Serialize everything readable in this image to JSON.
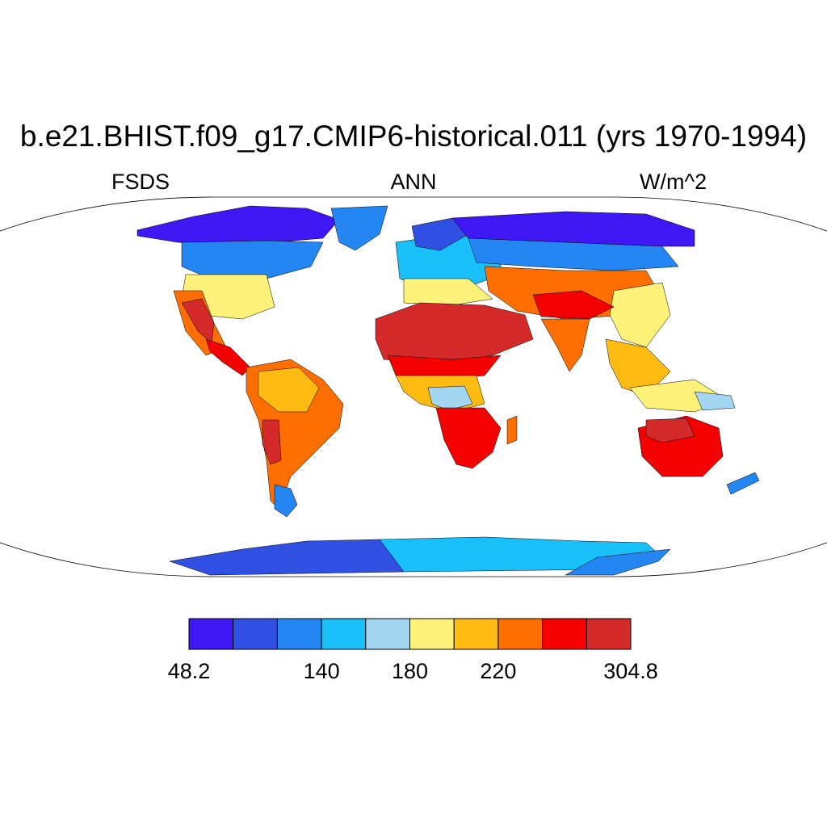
{
  "title": "b.e21.BHIST.f09_g17.CMIP6-historical.011 (yrs 1970-1994)",
  "left_label": "FSDS",
  "center_label": "ANN",
  "right_label": "W/m^2",
  "colorbar": {
    "colors": [
      "#3f17f3",
      "#2f50e3",
      "#2386f2",
      "#18bff8",
      "#a3d6f0",
      "#fff27a",
      "#ffbb11",
      "#ff6e00",
      "#f40000",
      "#d52a2a"
    ],
    "labels": [
      "48.2",
      "140",
      "180",
      "220",
      "304.8"
    ]
  },
  "map_regions": [
    {
      "name": "canada-arctic",
      "color": "#3f17f3",
      "pts": [
        [
          170,
          285
        ],
        [
          240,
          268
        ],
        [
          310,
          255
        ],
        [
          380,
          258
        ],
        [
          420,
          272
        ],
        [
          400,
          295
        ],
        [
          340,
          300
        ],
        [
          280,
          305
        ],
        [
          220,
          300
        ],
        [
          170,
          292
        ]
      ]
    },
    {
      "name": "north-america-mid",
      "color": "#2386f2",
      "pts": [
        [
          225,
          300
        ],
        [
          330,
          298
        ],
        [
          400,
          300
        ],
        [
          385,
          330
        ],
        [
          330,
          345
        ],
        [
          260,
          345
        ],
        [
          225,
          330
        ]
      ]
    },
    {
      "name": "greenland",
      "color": "#2386f2",
      "pts": [
        [
          410,
          258
        ],
        [
          480,
          255
        ],
        [
          470,
          290
        ],
        [
          440,
          310
        ],
        [
          420,
          300
        ]
      ]
    },
    {
      "name": "usa-east",
      "color": "#fff27a",
      "pts": [
        [
          230,
          340
        ],
        [
          330,
          340
        ],
        [
          340,
          380
        ],
        [
          300,
          395
        ],
        [
          250,
          390
        ],
        [
          225,
          370
        ]
      ]
    },
    {
      "name": "usa-southwest",
      "color": "#ff6e00",
      "pts": [
        [
          215,
          360
        ],
        [
          250,
          360
        ],
        [
          265,
          400
        ],
        [
          280,
          430
        ],
        [
          255,
          440
        ],
        [
          230,
          410
        ]
      ]
    },
    {
      "name": "mexico",
      "color": "#d52a2a",
      "pts": [
        [
          225,
          375
        ],
        [
          250,
          370
        ],
        [
          265,
          400
        ],
        [
          262,
          425
        ],
        [
          245,
          410
        ]
      ]
    },
    {
      "name": "central-america",
      "color": "#f40000",
      "pts": [
        [
          255,
          420
        ],
        [
          285,
          430
        ],
        [
          310,
          455
        ],
        [
          300,
          465
        ],
        [
          275,
          448
        ],
        [
          260,
          435
        ]
      ]
    },
    {
      "name": "south-america",
      "color": "#ff6e00",
      "pts": [
        [
          305,
          455
        ],
        [
          360,
          445
        ],
        [
          400,
          470
        ],
        [
          425,
          500
        ],
        [
          420,
          530
        ],
        [
          390,
          560
        ],
        [
          360,
          590
        ],
        [
          345,
          630
        ],
        [
          335,
          620
        ],
        [
          330,
          570
        ],
        [
          320,
          520
        ],
        [
          305,
          485
        ]
      ]
    },
    {
      "name": "amazon",
      "color": "#ffbb11",
      "pts": [
        [
          320,
          460
        ],
        [
          370,
          455
        ],
        [
          395,
          480
        ],
        [
          380,
          510
        ],
        [
          345,
          510
        ],
        [
          320,
          490
        ]
      ]
    },
    {
      "name": "patagonia",
      "color": "#2386f2",
      "pts": [
        [
          340,
          600
        ],
        [
          360,
          605
        ],
        [
          368,
          625
        ],
        [
          355,
          640
        ],
        [
          340,
          630
        ]
      ]
    },
    {
      "name": "west-andes",
      "color": "#d52a2a",
      "pts": [
        [
          325,
          520
        ],
        [
          345,
          520
        ],
        [
          348,
          570
        ],
        [
          335,
          575
        ],
        [
          325,
          550
        ]
      ]
    },
    {
      "name": "europe",
      "color": "#18bff8",
      "pts": [
        [
          490,
          300
        ],
        [
          560,
          290
        ],
        [
          620,
          300
        ],
        [
          620,
          340
        ],
        [
          580,
          355
        ],
        [
          530,
          360
        ],
        [
          495,
          345
        ]
      ]
    },
    {
      "name": "scandinavia",
      "color": "#2f50e3",
      "pts": [
        [
          510,
          280
        ],
        [
          560,
          270
        ],
        [
          580,
          290
        ],
        [
          545,
          310
        ],
        [
          515,
          305
        ]
      ]
    },
    {
      "name": "mediterranean",
      "color": "#fff27a",
      "pts": [
        [
          500,
          345
        ],
        [
          580,
          345
        ],
        [
          610,
          370
        ],
        [
          560,
          378
        ],
        [
          500,
          375
        ]
      ]
    },
    {
      "name": "siberia",
      "color": "#3f17f3",
      "pts": [
        [
          560,
          270
        ],
        [
          700,
          262
        ],
        [
          800,
          265
        ],
        [
          860,
          285
        ],
        [
          860,
          305
        ],
        [
          760,
          305
        ],
        [
          650,
          300
        ],
        [
          580,
          295
        ]
      ]
    },
    {
      "name": "asia-north-band",
      "color": "#2386f2",
      "pts": [
        [
          580,
          295
        ],
        [
          700,
          300
        ],
        [
          820,
          305
        ],
        [
          840,
          330
        ],
        [
          760,
          335
        ],
        [
          660,
          330
        ],
        [
          590,
          325
        ]
      ]
    },
    {
      "name": "central-asia",
      "color": "#ff6e00",
      "pts": [
        [
          600,
          330
        ],
        [
          700,
          335
        ],
        [
          800,
          335
        ],
        [
          820,
          370
        ],
        [
          780,
          390
        ],
        [
          700,
          395
        ],
        [
          640,
          385
        ],
        [
          605,
          360
        ]
      ]
    },
    {
      "name": "china-east",
      "color": "#fff27a",
      "pts": [
        [
          760,
          360
        ],
        [
          820,
          350
        ],
        [
          830,
          390
        ],
        [
          800,
          430
        ],
        [
          770,
          420
        ],
        [
          755,
          390
        ]
      ]
    },
    {
      "name": "himalaya",
      "color": "#f40000",
      "pts": [
        [
          660,
          365
        ],
        [
          720,
          360
        ],
        [
          760,
          380
        ],
        [
          730,
          395
        ],
        [
          670,
          392
        ]
      ]
    },
    {
      "name": "sahara-arabia",
      "color": "#d52a2a",
      "pts": [
        [
          465,
          395
        ],
        [
          520,
          375
        ],
        [
          600,
          378
        ],
        [
          650,
          390
        ],
        [
          660,
          420
        ],
        [
          610,
          440
        ],
        [
          540,
          450
        ],
        [
          475,
          445
        ],
        [
          465,
          420
        ]
      ]
    },
    {
      "name": "india",
      "color": "#ff6e00",
      "pts": [
        [
          670,
          395
        ],
        [
          730,
          395
        ],
        [
          720,
          440
        ],
        [
          705,
          460
        ],
        [
          690,
          430
        ]
      ]
    },
    {
      "name": "africa-sahel",
      "color": "#f40000",
      "pts": [
        [
          480,
          440
        ],
        [
          560,
          445
        ],
        [
          620,
          440
        ],
        [
          600,
          465
        ],
        [
          540,
          470
        ],
        [
          490,
          465
        ]
      ]
    },
    {
      "name": "africa-central",
      "color": "#ffbb11",
      "pts": [
        [
          490,
          465
        ],
        [
          590,
          465
        ],
        [
          600,
          500
        ],
        [
          560,
          510
        ],
        [
          520,
          500
        ],
        [
          500,
          485
        ]
      ]
    },
    {
      "name": "congo",
      "color": "#a3d6f0",
      "pts": [
        [
          530,
          480
        ],
        [
          575,
          478
        ],
        [
          585,
          500
        ],
        [
          555,
          508
        ],
        [
          535,
          500
        ]
      ]
    },
    {
      "name": "africa-south",
      "color": "#f40000",
      "pts": [
        [
          540,
          505
        ],
        [
          600,
          505
        ],
        [
          620,
          530
        ],
        [
          610,
          560
        ],
        [
          585,
          580
        ],
        [
          565,
          575
        ],
        [
          550,
          545
        ]
      ]
    },
    {
      "name": "madagascar",
      "color": "#ff6e00",
      "pts": [
        [
          628,
          520
        ],
        [
          640,
          515
        ],
        [
          640,
          545
        ],
        [
          628,
          550
        ]
      ]
    },
    {
      "name": "se-asia",
      "color": "#ffbb11",
      "pts": [
        [
          750,
          420
        ],
        [
          800,
          430
        ],
        [
          830,
          460
        ],
        [
          800,
          490
        ],
        [
          770,
          480
        ],
        [
          755,
          450
        ]
      ]
    },
    {
      "name": "indonesia",
      "color": "#fff27a",
      "pts": [
        [
          780,
          480
        ],
        [
          860,
          470
        ],
        [
          900,
          495
        ],
        [
          860,
          510
        ],
        [
          800,
          505
        ]
      ]
    },
    {
      "name": "new-guinea",
      "color": "#a3d6f0",
      "pts": [
        [
          860,
          485
        ],
        [
          905,
          490
        ],
        [
          910,
          505
        ],
        [
          870,
          508
        ]
      ]
    },
    {
      "name": "australia",
      "color": "#f40000",
      "pts": [
        [
          790,
          530
        ],
        [
          850,
          515
        ],
        [
          890,
          530
        ],
        [
          895,
          565
        ],
        [
          870,
          590
        ],
        [
          820,
          590
        ],
        [
          795,
          565
        ]
      ]
    },
    {
      "name": "australia-north",
      "color": "#d52a2a",
      "pts": [
        [
          800,
          520
        ],
        [
          850,
          518
        ],
        [
          860,
          540
        ],
        [
          820,
          548
        ],
        [
          800,
          540
        ]
      ]
    },
    {
      "name": "new-zealand",
      "color": "#2386f2",
      "pts": [
        [
          900,
          600
        ],
        [
          935,
          585
        ],
        [
          940,
          595
        ],
        [
          905,
          612
        ]
      ]
    },
    {
      "name": "antarctica-west",
      "color": "#2f50e3",
      "pts": [
        [
          210,
          695
        ],
        [
          300,
          680
        ],
        [
          380,
          670
        ],
        [
          470,
          668
        ],
        [
          500,
          680
        ],
        [
          500,
          708
        ],
        [
          260,
          712
        ]
      ]
    },
    {
      "name": "antarctica-east",
      "color": "#18bff8",
      "pts": [
        [
          470,
          668
        ],
        [
          600,
          665
        ],
        [
          720,
          670
        ],
        [
          800,
          672
        ],
        [
          820,
          690
        ],
        [
          760,
          705
        ],
        [
          500,
          708
        ]
      ]
    },
    {
      "name": "antarctica-edge",
      "color": "#2386f2",
      "pts": [
        [
          740,
          690
        ],
        [
          830,
          680
        ],
        [
          815,
          695
        ],
        [
          760,
          712
        ],
        [
          700,
          712
        ]
      ]
    }
  ]
}
